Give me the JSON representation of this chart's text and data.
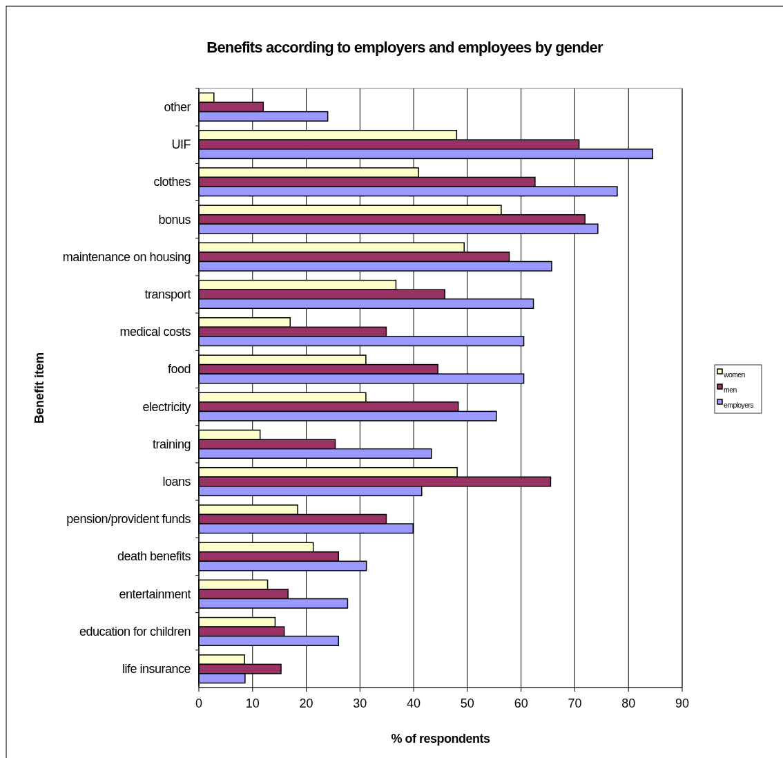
{
  "chart_data": {
    "type": "bar",
    "orientation": "horizontal",
    "title": "Benefits according to employers and employees by gender",
    "xlabel": "% of respondents",
    "ylabel": "Benefit item",
    "categories": [
      "other",
      "UIF",
      "clothes",
      "bonus",
      "maintenance on housing",
      "transport",
      "medical costs",
      "food",
      "electricity",
      "training",
      "loans",
      "pension/provident funds",
      "death benefits",
      "entertainment",
      "education for children",
      "life insurance"
    ],
    "series": [
      {
        "name": "women",
        "color": "#ffffcc",
        "values": [
          2.8,
          48.0,
          40.9,
          56.3,
          49.4,
          36.7,
          17.0,
          31.1,
          31.1,
          11.4,
          48.1,
          18.4,
          21.3,
          12.8,
          14.2,
          8.5
        ]
      },
      {
        "name": "men",
        "color": "#993366",
        "values": [
          12.0,
          70.8,
          62.6,
          71.9,
          57.8,
          45.8,
          34.9,
          44.5,
          48.3,
          25.4,
          65.5,
          34.9,
          26.0,
          16.6,
          15.9,
          15.3
        ]
      },
      {
        "name": "employers",
        "color": "#9999ff",
        "values": [
          24.0,
          84.5,
          77.9,
          74.3,
          65.7,
          62.3,
          60.5,
          60.5,
          55.4,
          43.3,
          41.5,
          39.9,
          31.2,
          27.7,
          26.0,
          8.6
        ]
      }
    ],
    "xlim": [
      0,
      90
    ],
    "xticks": [
      0,
      10,
      20,
      30,
      40,
      50,
      60,
      70,
      80,
      90
    ],
    "grid": "x",
    "legend": "right"
  }
}
